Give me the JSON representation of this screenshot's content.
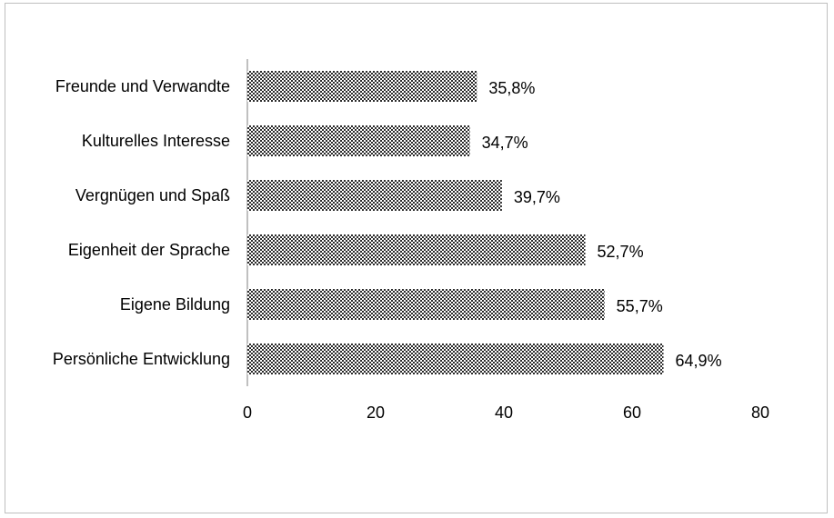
{
  "chart_data": {
    "type": "bar",
    "orientation": "horizontal",
    "categories": [
      "Freunde und Verwandte",
      "Kulturelles Interesse",
      "Vergnügen und Spaß",
      "Eigenheit der Sprache",
      "Eigene Bildung",
      "Persönliche Entwicklung"
    ],
    "values": [
      35.8,
      34.7,
      39.7,
      52.7,
      55.7,
      64.9
    ],
    "data_labels": [
      "35,8%",
      "34,7%",
      "39,7%",
      "52,7%",
      "55,7%",
      "64,9%"
    ],
    "xticks": [
      "0",
      "20",
      "40",
      "60",
      "80"
    ],
    "xlim": [
      0,
      80
    ],
    "grid": false,
    "legend": "none",
    "bar_pattern": "dark checkered",
    "bar_color": "#3a3a3a"
  }
}
